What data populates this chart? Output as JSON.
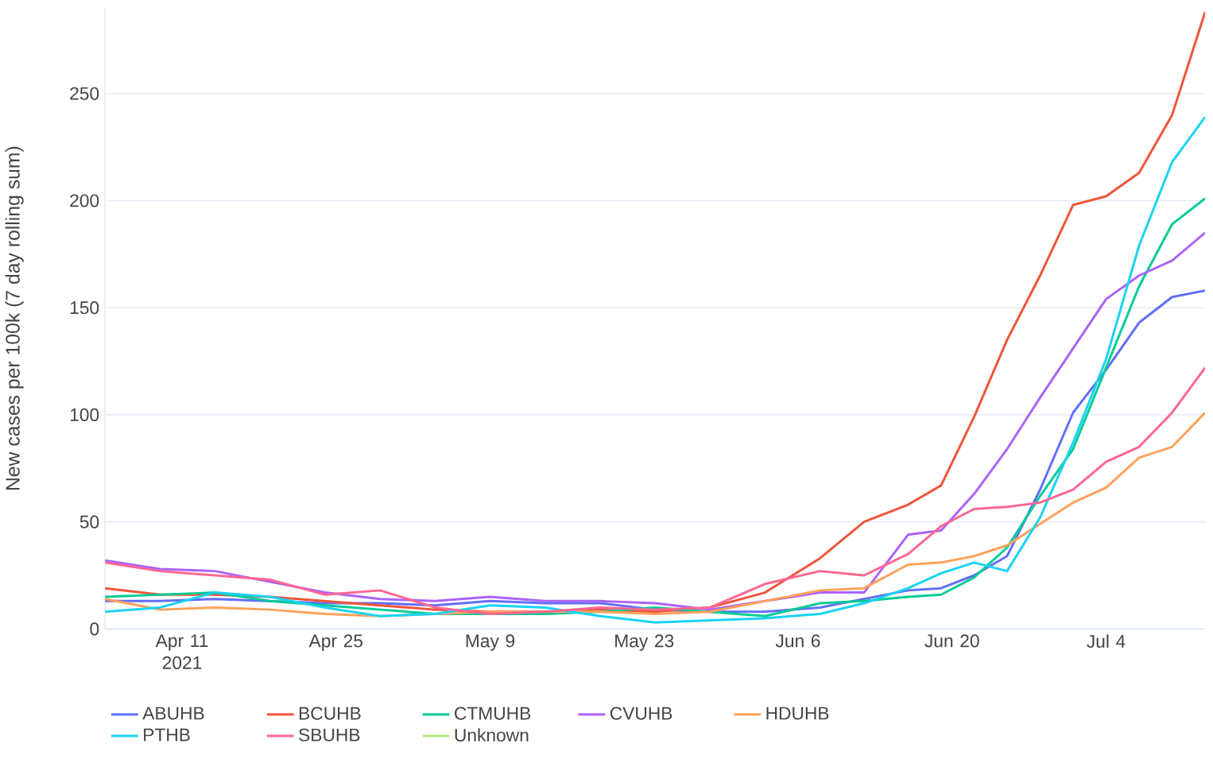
{
  "chart_data": {
    "type": "line",
    "ylabel": "New cases per 100k (7 day rolling sum)",
    "x": [
      "2021-04-04",
      "2021-04-09",
      "2021-04-14",
      "2021-04-19",
      "2021-04-24",
      "2021-04-29",
      "2021-05-04",
      "2021-05-09",
      "2021-05-14",
      "2021-05-19",
      "2021-05-24",
      "2021-05-29",
      "2021-06-03",
      "2021-06-08",
      "2021-06-12",
      "2021-06-16",
      "2021-06-19",
      "2021-06-22",
      "2021-06-25",
      "2021-06-28",
      "2021-07-01",
      "2021-07-04",
      "2021-07-07",
      "2021-07-10",
      "2021-07-13"
    ],
    "series": [
      {
        "name": "ABUHB",
        "color": "#636efa",
        "values": [
          13,
          13,
          14,
          13,
          12,
          12,
          11,
          13,
          12,
          12,
          9,
          8,
          8,
          10,
          14,
          18,
          19,
          25,
          34,
          65,
          101,
          121,
          143,
          155,
          158
        ]
      },
      {
        "name": "BCUHB",
        "color": "#ef553b",
        "values": [
          19,
          16,
          16,
          15,
          13,
          11,
          9,
          8,
          8,
          9,
          8,
          10,
          17,
          33,
          50,
          58,
          67,
          99,
          135,
          165,
          198,
          202,
          213,
          240,
          288
        ]
      },
      {
        "name": "CTMUHB",
        "color": "#00cc96",
        "values": [
          15,
          16,
          17,
          13,
          11,
          9,
          7,
          7,
          7,
          8,
          10,
          8,
          6,
          12,
          13,
          15,
          16,
          24,
          38,
          62,
          84,
          122,
          160,
          189,
          201
        ]
      },
      {
        "name": "CVUHB",
        "color": "#ab63fa",
        "values": [
          32,
          28,
          27,
          22,
          17,
          14,
          13,
          15,
          13,
          13,
          12,
          9,
          13,
          17,
          17,
          44,
          46,
          63,
          84,
          108,
          131,
          154,
          165,
          172,
          185
        ]
      },
      {
        "name": "HDUHB",
        "color": "#ffa15a",
        "values": [
          14,
          9,
          10,
          9,
          7,
          6,
          7,
          8,
          8,
          8,
          7,
          8,
          13,
          18,
          19,
          30,
          31,
          34,
          39,
          49,
          59,
          66,
          80,
          85,
          101
        ]
      },
      {
        "name": "PTHB",
        "color": "#19d3f3",
        "values": [
          8,
          10,
          17,
          15,
          10,
          6,
          7,
          11,
          10,
          6,
          3,
          4,
          5,
          7,
          12,
          19,
          26,
          31,
          27,
          52,
          87,
          126,
          179,
          218,
          239
        ]
      },
      {
        "name": "SBUHB",
        "color": "#ff6692",
        "values": [
          31,
          27,
          25,
          23,
          16,
          18,
          10,
          7,
          8,
          10,
          9,
          10,
          21,
          27,
          25,
          35,
          48,
          56,
          57,
          59,
          65,
          78,
          85,
          101,
          122
        ]
      },
      {
        "name": "Unknown",
        "color": "#b6e880",
        "values": [
          null,
          null,
          null,
          null,
          null,
          null,
          null,
          null,
          null,
          null,
          null,
          null,
          null,
          null,
          null,
          null,
          null,
          null,
          null,
          null,
          null,
          null,
          null,
          null,
          null
        ]
      }
    ],
    "xlim": [
      "2021-04-04",
      "2021-07-13"
    ],
    "xticks": [
      {
        "value": "2021-04-11",
        "label": "Apr 11 2021"
      },
      {
        "value": "2021-04-25",
        "label": "Apr 25"
      },
      {
        "value": "2021-05-09",
        "label": "May 9"
      },
      {
        "value": "2021-05-23",
        "label": "May 23"
      },
      {
        "value": "2021-06-06",
        "label": "Jun 6"
      },
      {
        "value": "2021-06-20",
        "label": "Jun 20"
      },
      {
        "value": "2021-07-04",
        "label": "Jul 4"
      }
    ],
    "ylim": [
      0,
      290
    ],
    "yticks": [
      0,
      50,
      100,
      150,
      200,
      250
    ],
    "grid": "y",
    "legend": "bottom"
  }
}
